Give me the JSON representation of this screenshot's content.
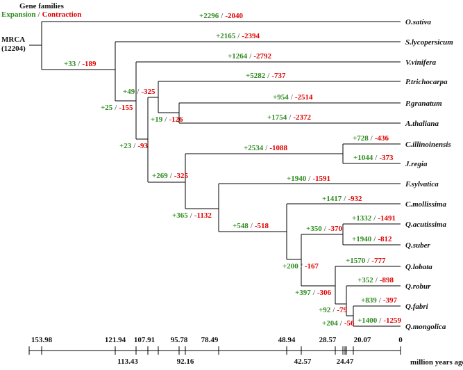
{
  "header": {
    "title": "Gene families",
    "expansion": "Expansion",
    "slash": "/",
    "contraction": "Contraction"
  },
  "root": {
    "label": "MRCA",
    "count": "(12204)"
  },
  "colors": {
    "expansion": "#2e8b1f",
    "contraction": "#e00000",
    "line": "#000000"
  },
  "species": [
    {
      "name": "O.sativa"
    },
    {
      "name": "S.lycopersicum"
    },
    {
      "name": "V.vinifera"
    },
    {
      "name": "P.trichocarpa"
    },
    {
      "name": "P.granatum"
    },
    {
      "name": "A.thaliana"
    },
    {
      "name": "C.illinoinensis"
    },
    {
      "name": "J.regia"
    },
    {
      "name": "F.sylvatica"
    },
    {
      "name": "C.mollissima"
    },
    {
      "name": "Q.acutissima"
    },
    {
      "name": "Q.suber"
    },
    {
      "name": "Q.lobata"
    },
    {
      "name": "Q.robur"
    },
    {
      "name": "Q.fabri"
    },
    {
      "name": "Q.mongolica"
    }
  ],
  "changes": [
    {
      "branch": "O.sativa",
      "plus": "+2296",
      "minus": "-2040"
    },
    {
      "branch": "S.lycopersicum",
      "plus": "+2165",
      "minus": "-2394"
    },
    {
      "branch": "V.vinifera",
      "plus": "+1264",
      "minus": "-2792"
    },
    {
      "branch": "P.trichocarpa",
      "plus": "+5282",
      "minus": "-737"
    },
    {
      "branch": "P.granatum",
      "plus": "+954",
      "minus": "-2514"
    },
    {
      "branch": "A.thaliana",
      "plus": "+1754",
      "minus": "-2372"
    },
    {
      "branch": "C.illinoinensis",
      "plus": "+728",
      "minus": "-436"
    },
    {
      "branch": "J.regia",
      "plus": "+1044",
      "minus": "-373"
    },
    {
      "branch": "F.sylvatica",
      "plus": "+1940",
      "minus": "-1591"
    },
    {
      "branch": "C.mollissima",
      "plus": "+1417",
      "minus": "-932"
    },
    {
      "branch": "Q.acutissima",
      "plus": "+1332",
      "minus": "-1491"
    },
    {
      "branch": "Q.suber",
      "plus": "+1940",
      "minus": "-812"
    },
    {
      "branch": "Q.lobata",
      "plus": "+1570",
      "minus": "-777"
    },
    {
      "branch": "Q.robur",
      "plus": "+352",
      "minus": "-898"
    },
    {
      "branch": "Q.fabri",
      "plus": "+839",
      "minus": "-397"
    },
    {
      "branch": "Q.mongolica",
      "plus": "+1400",
      "minus": "-1259"
    },
    {
      "branch": "node-rosids",
      "plus": "+33",
      "minus": "-189"
    },
    {
      "branch": "node-A",
      "plus": "+25",
      "minus": "-155"
    },
    {
      "branch": "node-B",
      "plus": "+49",
      "minus": "-325"
    },
    {
      "branch": "node-C",
      "plus": "+19",
      "minus": "-126"
    },
    {
      "branch": "node-D",
      "plus": "+23",
      "minus": "-93"
    },
    {
      "branch": "node-E",
      "plus": "+269",
      "minus": "-325"
    },
    {
      "branch": "node-juglandaceae",
      "plus": "+2534",
      "minus": "-1088"
    },
    {
      "branch": "node-fagaceae",
      "plus": "+365",
      "minus": "-1132"
    },
    {
      "branch": "node-castanea-quercus",
      "plus": "+548",
      "minus": "-518"
    },
    {
      "branch": "node-quercus",
      "plus": "+200",
      "minus": "-167"
    },
    {
      "branch": "node-cerris",
      "plus": "+350",
      "minus": "-370"
    },
    {
      "branch": "node-quercus-sect",
      "plus": "+397",
      "minus": "-306"
    },
    {
      "branch": "node-robur-group",
      "plus": "+92",
      "minus": "-79"
    },
    {
      "branch": "node-fabri-mongolica",
      "plus": "+204",
      "minus": "-56"
    }
  ],
  "axis": {
    "ticks_top": [
      "153.98",
      "121.94",
      "107.91",
      "95.78",
      "78.49",
      "48.94",
      "28.57",
      "20.07",
      "0"
    ],
    "ticks_bottom": [
      "113.43",
      "92.16",
      "42.57",
      "24.47"
    ],
    "unit": "million years ago"
  }
}
